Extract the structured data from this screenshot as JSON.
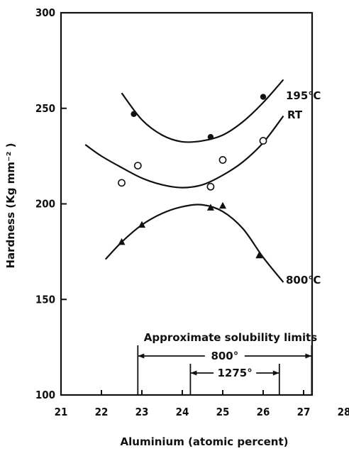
{
  "chart_data": {
    "type": "scatter",
    "xlabel": "Aluminium (atomic percent)",
    "ylabel": "Hardness (Kg mm⁻² )",
    "xlim": [
      21,
      28
    ],
    "ylim": [
      100,
      300
    ],
    "x_ticks": [
      "21",
      "22",
      "23",
      "24",
      "25",
      "26",
      "27",
      "28"
    ],
    "y_ticks": [
      "100",
      "150",
      "200",
      "250",
      "300"
    ],
    "grid": false,
    "series": [
      {
        "name": "195℃",
        "marker": "filled-circle",
        "points": [
          [
            22.8,
            247
          ],
          [
            24.7,
            235
          ],
          [
            26.0,
            256
          ]
        ],
        "curve": [
          [
            22.5,
            258
          ],
          [
            23.0,
            244
          ],
          [
            23.5,
            236
          ],
          [
            24.0,
            232.5
          ],
          [
            24.5,
            233
          ],
          [
            25.0,
            236
          ],
          [
            25.5,
            243
          ],
          [
            26.0,
            253
          ],
          [
            26.5,
            265
          ]
        ]
      },
      {
        "name": "RT",
        "marker": "open-circle",
        "points": [
          [
            22.5,
            211
          ],
          [
            22.9,
            220
          ],
          [
            24.7,
            209
          ],
          [
            25.0,
            223
          ],
          [
            26.0,
            233
          ]
        ],
        "curve": [
          [
            21.6,
            231
          ],
          [
            22.0,
            225
          ],
          [
            22.5,
            219
          ],
          [
            23.0,
            213.5
          ],
          [
            23.5,
            210
          ],
          [
            24.0,
            208.5
          ],
          [
            24.5,
            210
          ],
          [
            25.0,
            215
          ],
          [
            25.5,
            222
          ],
          [
            26.0,
            232
          ],
          [
            26.5,
            246
          ]
        ]
      },
      {
        "name": "800℃",
        "marker": "filled-triangle",
        "points": [
          [
            22.5,
            180
          ],
          [
            23.0,
            189
          ],
          [
            24.7,
            198
          ],
          [
            25.0,
            199
          ],
          [
            25.9,
            173
          ]
        ],
        "curve": [
          [
            22.1,
            171
          ],
          [
            22.5,
            180
          ],
          [
            23.0,
            189
          ],
          [
            23.5,
            195
          ],
          [
            24.0,
            198.5
          ],
          [
            24.5,
            199.5
          ],
          [
            25.0,
            196
          ],
          [
            25.5,
            187
          ],
          [
            26.0,
            172
          ],
          [
            26.5,
            159
          ]
        ]
      }
    ],
    "annotations": {
      "solubility_title": "Approximate solubility limits",
      "ranges": [
        {
          "label": "800°",
          "from": 22.9,
          "to": 27.2
        },
        {
          "label": "1275°",
          "from": 24.2,
          "to": 26.4
        }
      ]
    }
  }
}
